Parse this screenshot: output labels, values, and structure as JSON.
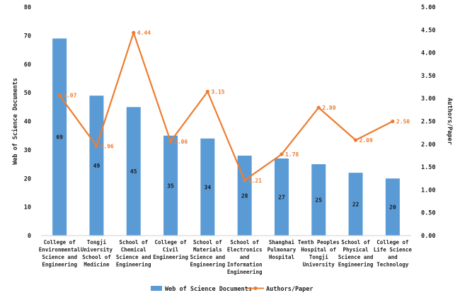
{
  "chart_data": {
    "type": "bar",
    "categories": [
      [
        "College of",
        "Environmental",
        "Science and",
        "Engineering"
      ],
      [
        "Tongji",
        "University",
        "School of",
        "Medicine"
      ],
      [
        "School of",
        "Chemical",
        "Science and",
        "Engineering"
      ],
      [
        "College of",
        "Civil",
        "Engineering"
      ],
      [
        "School of",
        "Materials",
        "Science and",
        "Engineering"
      ],
      [
        "School of",
        "Electronics",
        "and",
        "Information",
        "Engineering"
      ],
      [
        "Shanghai",
        "Pulmonary",
        "Hospital"
      ],
      [
        "Tenth Peoples",
        "Hospital of",
        "Tongji",
        "University"
      ],
      [
        "School of",
        "Physical",
        "Science and",
        "Engineering"
      ],
      [
        "College of",
        "Life Science",
        "and",
        "Technology"
      ]
    ],
    "series": [
      {
        "name": "Web of Science Documents",
        "type": "bar",
        "axis": "left",
        "color": "#5B9BD5",
        "values": [
          69,
          49,
          45,
          35,
          34,
          28,
          27,
          25,
          22,
          20
        ],
        "labels": [
          "69",
          "49",
          "45",
          "35",
          "34",
          "28",
          "27",
          "25",
          "22",
          "20"
        ]
      },
      {
        "name": "Authors/Paper",
        "type": "line",
        "axis": "right",
        "color": "#ED7D31",
        "values": [
          3.07,
          1.96,
          4.44,
          2.06,
          3.15,
          1.21,
          1.78,
          2.8,
          2.09,
          2.5
        ],
        "labels": [
          "3.07",
          "1.96",
          "4.44",
          "2.06",
          "3.15",
          "1.21",
          "1.78",
          "2.80",
          "2.09",
          "2.50"
        ]
      }
    ],
    "ylabel": "Web of Science Documents",
    "y2label": "Authors/Paper",
    "ylim": [
      0,
      80
    ],
    "y2lim": [
      0,
      5
    ],
    "yticks": [
      "0",
      "10",
      "20",
      "30",
      "40",
      "50",
      "60",
      "70",
      "80"
    ],
    "y2ticks": [
      "0.00",
      "0.50",
      "1.00",
      "1.50",
      "2.00",
      "2.50",
      "3.00",
      "3.50",
      "4.00",
      "4.50",
      "5.00"
    ],
    "grid": false,
    "legend": "bottom"
  }
}
